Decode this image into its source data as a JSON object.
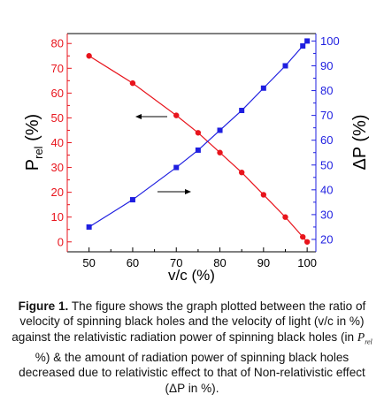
{
  "chart_data": {
    "type": "line",
    "x": [
      50,
      60,
      70,
      75,
      80,
      85,
      90,
      95,
      99,
      100
    ],
    "xlabel": "v/c (%)",
    "xlim": [
      45,
      102
    ],
    "xticks": [
      50,
      60,
      70,
      80,
      90,
      100
    ],
    "y_left": {
      "label_main": "P",
      "label_sub": "rel",
      "label_suffix": " (%)",
      "lim": [
        -4,
        84
      ],
      "ticks": [
        0,
        10,
        20,
        30,
        40,
        50,
        60,
        70,
        80
      ],
      "color": "#e8141c"
    },
    "y_right": {
      "label": "ΔP (%)",
      "lim": [
        15,
        103
      ],
      "ticks": [
        20,
        30,
        40,
        50,
        60,
        70,
        80,
        90,
        100
      ],
      "color": "#1f1fe0"
    },
    "series": [
      {
        "axis": "left",
        "marker": "circle",
        "color": "#e8141c",
        "values": [
          75,
          64,
          51,
          44,
          36,
          28,
          19,
          10,
          2,
          0
        ]
      },
      {
        "axis": "right",
        "marker": "square",
        "color": "#1f1fe0",
        "values": [
          25,
          36,
          49,
          56,
          64,
          72,
          81,
          90,
          98,
          100
        ]
      }
    ],
    "annotations": [
      {
        "type": "arrow",
        "direction": "left",
        "points_to": "left axis"
      },
      {
        "type": "arrow",
        "direction": "right",
        "points_to": "right axis"
      }
    ],
    "grid": false
  },
  "caption": {
    "label": "Figure 1.",
    "part1": " The figure shows the graph plotted between the ratio of velocity of spinning black holes and the velocity of light (v/c in %) against the relativistic radiation power of spinning black holes (in ",
    "prel_main": "P",
    "prel_sub": "rel",
    "part2": " %) & the amount of radiation power of spinning black holes decreased due to relativistic effect to that of Non-relativistic effect (ΔP in %)."
  }
}
